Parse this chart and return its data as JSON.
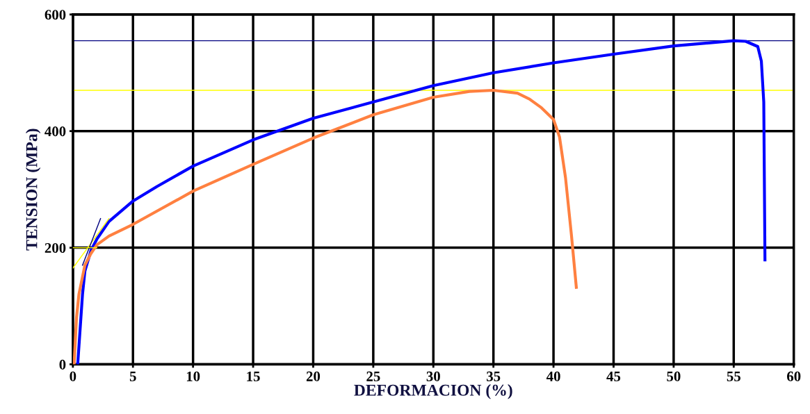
{
  "chart_data": {
    "type": "line",
    "xlabel": "DEFORMACION (%)",
    "ylabel": "TENSION (MPa)",
    "xlim": [
      0,
      60
    ],
    "ylim": [
      0,
      600
    ],
    "xticks": [
      0,
      5,
      10,
      15,
      20,
      25,
      30,
      35,
      40,
      45,
      50,
      55,
      60
    ],
    "yticks": [
      0,
      200,
      400,
      600
    ],
    "grid": true,
    "legend": false,
    "marker": "none",
    "line_style": "solid",
    "series": [
      {
        "color": "#0000ff",
        "x": [
          0.4,
          0.6,
          0.8,
          1.0,
          1.5,
          2,
          3,
          5,
          7,
          10,
          15,
          20,
          25,
          30,
          35,
          40,
          45,
          50,
          55,
          56,
          57,
          57.3,
          57.5,
          57.6
        ],
        "values": [
          0,
          60,
          120,
          160,
          195,
          215,
          245,
          280,
          305,
          340,
          385,
          422,
          450,
          478,
          500,
          517,
          532,
          546,
          555,
          554,
          545,
          520,
          450,
          179
        ]
      },
      {
        "color": "#ff8040",
        "x": [
          0.1,
          0.3,
          0.5,
          1,
          1.5,
          2,
          3,
          5,
          10,
          15,
          20,
          25,
          30,
          33,
          35,
          37,
          38,
          39,
          40,
          40.5,
          41,
          41.5,
          41.9
        ],
        "values": [
          0,
          80,
          120,
          170,
          190,
          205,
          220,
          240,
          297,
          343,
          388,
          428,
          458,
          468,
          470,
          465,
          455,
          440,
          420,
          390,
          320,
          220,
          132
        ]
      },
      {
        "color": "#ffff00",
        "x": [
          0,
          3
        ],
        "values": [
          165,
          250
        ]
      },
      {
        "color": "#000080",
        "x": [
          0.8,
          2.3
        ],
        "values": [
          170,
          250
        ]
      },
      {
        "color": "#ffff00",
        "x": [
          0,
          2
        ],
        "values": [
          200,
          200
        ]
      }
    ],
    "ref_lines": [
      {
        "axis": "y",
        "value": 555,
        "color": "#000080"
      },
      {
        "axis": "y",
        "value": 470,
        "color": "#ffff00"
      }
    ]
  }
}
